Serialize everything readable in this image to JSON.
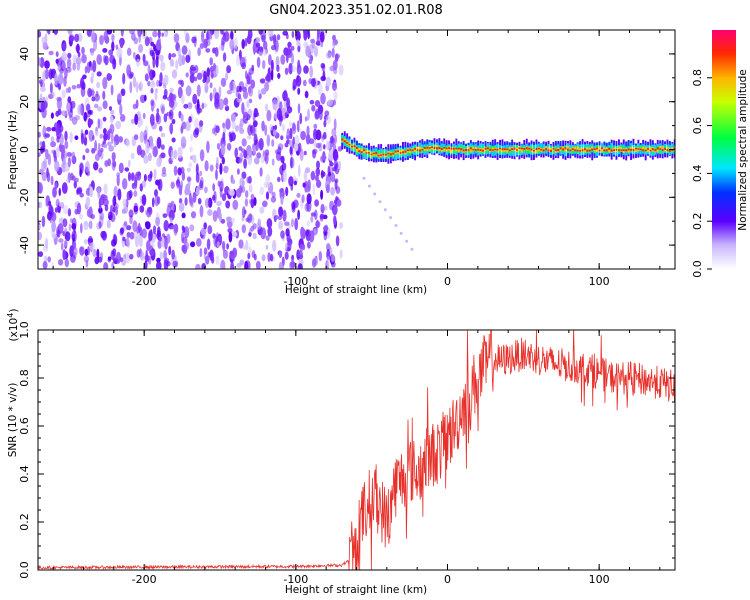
{
  "title": "GN04.2023.351.02.01.R08",
  "chart_data": [
    {
      "type": "heatmap",
      "xlabel": "Height of straight line (km)",
      "ylabel": "Frequency (Hz)",
      "xlim": [
        -270,
        150
      ],
      "ylim": [
        -50,
        50
      ],
      "xticks": [
        "-200",
        "-100",
        "0",
        "100"
      ],
      "yticks": [
        "-40",
        "-20",
        "0",
        "20",
        "40"
      ],
      "noise_region_x": [
        -270,
        -70
      ],
      "signal_track": {
        "x": [
          -70,
          -60,
          -50,
          -40,
          -30,
          -20,
          -10,
          0,
          20,
          40,
          60,
          80,
          100,
          120,
          140,
          150
        ],
        "y": [
          4,
          0,
          -2,
          -2,
          -1,
          0,
          1,
          0,
          0,
          0,
          0,
          0,
          0,
          0,
          0,
          0
        ]
      },
      "colorbar": {
        "label": "Normalized spectral amplitude",
        "range": [
          0,
          1
        ],
        "ticks": [
          "0.0",
          "0.2",
          "0.4",
          "0.6",
          "0.8"
        ]
      }
    },
    {
      "type": "line",
      "xlabel": "Height of straight line (km)",
      "ylabel": "SNR (10 * v/v)",
      "scale_note": "(x10",
      "scale_exp": "4",
      "scale_close": ")",
      "xlim": [
        -270,
        150
      ],
      "ylim": [
        0,
        1.0
      ],
      "xticks": [
        "-200",
        "-100",
        "0",
        "100"
      ],
      "yticks": [
        "0.0",
        "0.2",
        "0.4",
        "0.6",
        "0.8",
        "1.0"
      ],
      "color": "#e8302a",
      "series": [
        {
          "x": [
            -270,
            -200,
            -100,
            -70,
            -62,
            -58,
            -55,
            -50,
            -45,
            -40,
            -35,
            -30,
            -25,
            -20,
            -15,
            -10,
            -5,
            0,
            5,
            10,
            15,
            20,
            25,
            30,
            35,
            40,
            50,
            60,
            70,
            80,
            90,
            100,
            110,
            120,
            130,
            140,
            150
          ],
          "y": [
            0.01,
            0.012,
            0.015,
            0.02,
            0.05,
            0.15,
            0.25,
            0.3,
            0.28,
            0.2,
            0.35,
            0.38,
            0.42,
            0.4,
            0.45,
            0.48,
            0.5,
            0.55,
            0.6,
            0.68,
            0.74,
            0.8,
            0.85,
            0.88,
            0.87,
            0.88,
            0.9,
            0.88,
            0.86,
            0.85,
            0.84,
            0.82,
            0.8,
            0.8,
            0.79,
            0.78,
            0.76
          ]
        }
      ]
    }
  ]
}
